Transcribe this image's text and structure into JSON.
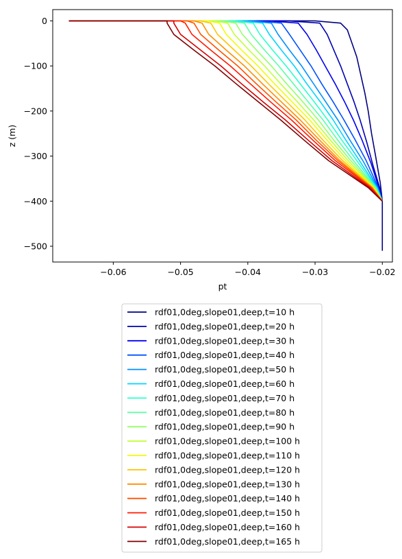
{
  "chart_data": {
    "type": "line",
    "title": "",
    "xlabel": "pt",
    "ylabel": "z (m)",
    "xlim": [
      -0.069,
      -0.0185
    ],
    "ylim": [
      -535,
      25
    ],
    "xticks": [
      -0.06,
      -0.05,
      -0.04,
      -0.03,
      -0.02
    ],
    "xtick_labels": [
      "−0.06",
      "−0.05",
      "−0.04",
      "−0.03",
      "−0.02"
    ],
    "yticks": [
      0,
      -100,
      -200,
      -300,
      -400,
      -500
    ],
    "ytick_labels": [
      "0",
      "−100",
      "−200",
      "−300",
      "−400",
      "−500"
    ],
    "grid": false,
    "legend_position": "below",
    "series": [
      {
        "name": "rdf01,0deg,slope01,deep,t=10 h",
        "color": "#000080",
        "x": [
          -0.0666,
          -0.03,
          -0.0262,
          -0.0252,
          -0.0245,
          -0.0238,
          -0.0232,
          -0.0226,
          -0.0221,
          -0.0216,
          -0.021,
          -0.0203,
          -0.02,
          -0.02
        ],
        "y": [
          0,
          0,
          -5,
          -20,
          -50,
          -80,
          -120,
          -160,
          -200,
          -250,
          -300,
          -360,
          -400,
          -510
        ]
      },
      {
        "name": "rdf01,0deg,slope01,deep,t=20 h",
        "color": "#0000b3",
        "x": [
          -0.0666,
          -0.034,
          -0.0293,
          -0.0282,
          -0.0272,
          -0.0262,
          -0.0252,
          -0.0242,
          -0.0233,
          -0.0223,
          -0.0214,
          -0.0203,
          -0.02
        ],
        "y": [
          0,
          0,
          -5,
          -30,
          -65,
          -100,
          -140,
          -180,
          -220,
          -270,
          -320,
          -375,
          -400
        ]
      },
      {
        "name": "rdf01,0deg,slope01,deep,t=30 h",
        "color": "#0000f1",
        "x": [
          -0.0666,
          -0.037,
          -0.0325,
          -0.0312,
          -0.0298,
          -0.0285,
          -0.027,
          -0.0256,
          -0.0243,
          -0.023,
          -0.0217,
          -0.0204,
          -0.02
        ],
        "y": [
          0,
          0,
          -5,
          -30,
          -65,
          -100,
          -140,
          -180,
          -220,
          -265,
          -315,
          -375,
          -400
        ]
      },
      {
        "name": "rdf01,0deg,slope01,deep,t=40 h",
        "color": "#0050ff",
        "x": [
          -0.0666,
          -0.039,
          -0.035,
          -0.0338,
          -0.0322,
          -0.0306,
          -0.029,
          -0.0273,
          -0.0257,
          -0.024,
          -0.0224,
          -0.0206,
          -0.02
        ],
        "y": [
          0,
          0,
          -5,
          -30,
          -65,
          -100,
          -140,
          -180,
          -220,
          -265,
          -310,
          -370,
          -400
        ]
      },
      {
        "name": "rdf01,0deg,slope01,deep,t=50 h",
        "color": "#0090ff",
        "x": [
          -0.0666,
          -0.04,
          -0.0365,
          -0.0355,
          -0.0338,
          -0.032,
          -0.0302,
          -0.0284,
          -0.0266,
          -0.0248,
          -0.0229,
          -0.0207,
          -0.02
        ],
        "y": [
          0,
          0,
          -5,
          -30,
          -65,
          -100,
          -140,
          -180,
          -220,
          -265,
          -310,
          -370,
          -400
        ]
      },
      {
        "name": "rdf01,0deg,slope01,deep,t=60 h",
        "color": "#00d4ff",
        "x": [
          -0.0666,
          -0.041,
          -0.0378,
          -0.0368,
          -0.035,
          -0.0331,
          -0.0312,
          -0.0292,
          -0.0273,
          -0.0254,
          -0.0234,
          -0.0208,
          -0.02
        ],
        "y": [
          0,
          0,
          -5,
          -30,
          -65,
          -100,
          -140,
          -180,
          -220,
          -265,
          -310,
          -370,
          -400
        ]
      },
      {
        "name": "rdf01,0deg,slope01,deep,t=70 h",
        "color": "#29ffce",
        "x": [
          -0.0666,
          -0.042,
          -0.0392,
          -0.0382,
          -0.0363,
          -0.0343,
          -0.0322,
          -0.0301,
          -0.0281,
          -0.026,
          -0.0238,
          -0.0209,
          -0.02
        ],
        "y": [
          0,
          0,
          -5,
          -30,
          -65,
          -100,
          -140,
          -180,
          -220,
          -265,
          -310,
          -370,
          -400
        ]
      },
      {
        "name": "rdf01,0deg,slope01,deep,t=80 h",
        "color": "#5affa5",
        "x": [
          -0.0666,
          -0.043,
          -0.0405,
          -0.0395,
          -0.0375,
          -0.0354,
          -0.0332,
          -0.031,
          -0.0288,
          -0.0266,
          -0.0243,
          -0.021,
          -0.02
        ],
        "y": [
          0,
          0,
          -5,
          -30,
          -65,
          -100,
          -140,
          -180,
          -220,
          -265,
          -310,
          -370,
          -400
        ]
      },
      {
        "name": "rdf01,0deg,slope01,deep,t=90 h",
        "color": "#94ff6a",
        "x": [
          -0.0666,
          -0.044,
          -0.0418,
          -0.0408,
          -0.0387,
          -0.0365,
          -0.0342,
          -0.0318,
          -0.0295,
          -0.0272,
          -0.0247,
          -0.0211,
          -0.02
        ],
        "y": [
          0,
          0,
          -5,
          -30,
          -65,
          -100,
          -140,
          -180,
          -220,
          -265,
          -310,
          -370,
          -400
        ]
      },
      {
        "name": "rdf01,0deg,slope01,deep,t=100 h",
        "color": "#c1ff36",
        "x": [
          -0.0666,
          -0.045,
          -0.043,
          -0.042,
          -0.0398,
          -0.0375,
          -0.0351,
          -0.0326,
          -0.0302,
          -0.0277,
          -0.0251,
          -0.0212,
          -0.02
        ],
        "y": [
          0,
          0,
          -5,
          -30,
          -65,
          -100,
          -140,
          -180,
          -220,
          -265,
          -310,
          -370,
          -400
        ]
      },
      {
        "name": "rdf01,0deg,slope01,deep,t=110 h",
        "color": "#f1fc06",
        "x": [
          -0.0666,
          -0.046,
          -0.0442,
          -0.0432,
          -0.0409,
          -0.0385,
          -0.036,
          -0.0334,
          -0.0308,
          -0.0282,
          -0.0255,
          -0.0213,
          -0.02
        ],
        "y": [
          0,
          0,
          -5,
          -30,
          -65,
          -100,
          -140,
          -180,
          -220,
          -265,
          -310,
          -370,
          -400
        ]
      },
      {
        "name": "rdf01,0deg,slope01,deep,t=120 h",
        "color": "#ffc400",
        "x": [
          -0.0666,
          -0.047,
          -0.0455,
          -0.0445,
          -0.042,
          -0.0395,
          -0.0369,
          -0.0342,
          -0.0315,
          -0.0288,
          -0.0259,
          -0.0214,
          -0.02
        ],
        "y": [
          0,
          0,
          -5,
          -30,
          -65,
          -100,
          -140,
          -180,
          -220,
          -265,
          -310,
          -370,
          -400
        ]
      },
      {
        "name": "rdf01,0deg,slope01,deep,t=130 h",
        "color": "#ff8d00",
        "x": [
          -0.0666,
          -0.048,
          -0.0468,
          -0.0458,
          -0.0432,
          -0.0405,
          -0.0378,
          -0.035,
          -0.0322,
          -0.0293,
          -0.0263,
          -0.0215,
          -0.02
        ],
        "y": [
          0,
          0,
          -5,
          -30,
          -65,
          -100,
          -140,
          -180,
          -220,
          -265,
          -310,
          -370,
          -400
        ]
      },
      {
        "name": "rdf01,0deg,slope01,deep,t=140 h",
        "color": "#ff5200",
        "x": [
          -0.0666,
          -0.049,
          -0.048,
          -0.047,
          -0.0443,
          -0.0415,
          -0.0387,
          -0.0358,
          -0.0328,
          -0.0298,
          -0.0266,
          -0.0216,
          -0.02
        ],
        "y": [
          0,
          0,
          -5,
          -30,
          -65,
          -100,
          -140,
          -180,
          -220,
          -265,
          -310,
          -370,
          -400
        ]
      },
      {
        "name": "rdf01,0deg,slope01,deep,t=150 h",
        "color": "#ff1a00",
        "x": [
          -0.0666,
          -0.05,
          -0.0493,
          -0.0483,
          -0.0455,
          -0.0426,
          -0.0396,
          -0.0366,
          -0.0335,
          -0.0303,
          -0.027,
          -0.0217,
          -0.02
        ],
        "y": [
          0,
          0,
          -5,
          -30,
          -65,
          -100,
          -140,
          -180,
          -220,
          -265,
          -310,
          -370,
          -400
        ]
      },
      {
        "name": "rdf01,0deg,slope01,deep,t=160 h",
        "color": "#d40000",
        "x": [
          -0.0666,
          -0.051,
          -0.051,
          -0.05,
          -0.047,
          -0.044,
          -0.0409,
          -0.0377,
          -0.0344,
          -0.031,
          -0.0275,
          -0.0219,
          -0.02
        ],
        "y": [
          0,
          0,
          -5,
          -30,
          -65,
          -100,
          -140,
          -180,
          -220,
          -265,
          -310,
          -370,
          -400
        ]
      },
      {
        "name": "rdf01,0deg,slope01,deep,t=165 h",
        "color": "#800000",
        "x": [
          -0.0666,
          -0.052,
          -0.052,
          -0.051,
          -0.048,
          -0.0449,
          -0.0417,
          -0.0384,
          -0.0351,
          -0.0316,
          -0.028,
          -0.0221,
          -0.02
        ],
        "y": [
          0,
          0,
          -5,
          -30,
          -65,
          -100,
          -140,
          -180,
          -220,
          -265,
          -310,
          -370,
          -400
        ]
      }
    ]
  }
}
